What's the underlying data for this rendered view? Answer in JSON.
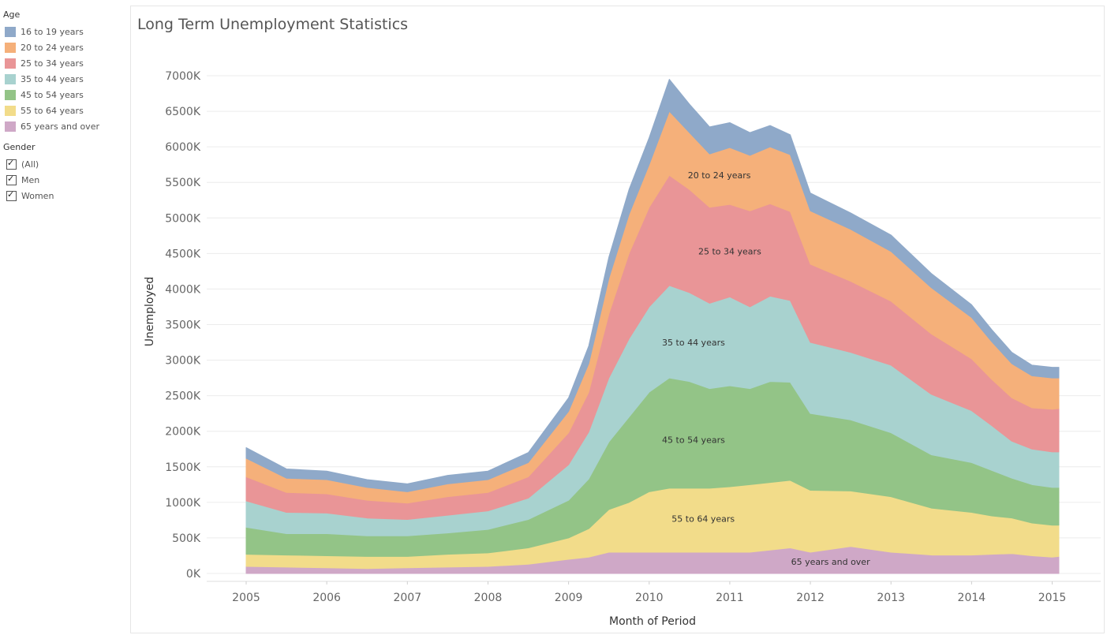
{
  "legend": {
    "age_title": "Age",
    "age_items": [
      {
        "label": "16 to 19 years",
        "color": "#8FA9C9"
      },
      {
        "label": "20 to 24 years",
        "color": "#F5B07A"
      },
      {
        "label": "25 to 34 years",
        "color": "#E99597"
      },
      {
        "label": "35 to 44 years",
        "color": "#A8D2CF"
      },
      {
        "label": "45 to 54 years",
        "color": "#93C487"
      },
      {
        "label": "55 to 64 years",
        "color": "#F2DC8A"
      },
      {
        "label": "65 years and over",
        "color": "#CFA8C7"
      }
    ],
    "gender_title": "Gender",
    "gender_items": [
      {
        "label": "(All)",
        "checked": true
      },
      {
        "label": "Men",
        "checked": true
      },
      {
        "label": "Women",
        "checked": true
      }
    ]
  },
  "chart_data": {
    "type": "area",
    "stacked": true,
    "title": "Long Term Unemployment Statistics",
    "xlabel": "Month of Period",
    "ylabel": "Unemployed",
    "x_ticks": [
      "2005",
      "2006",
      "2007",
      "2008",
      "2009",
      "2010",
      "2011",
      "2012",
      "2013",
      "2014",
      "2015"
    ],
    "y_ticks": [
      "0K",
      "500K",
      "1000K",
      "1500K",
      "2000K",
      "2500K",
      "3000K",
      "3500K",
      "4000K",
      "4500K",
      "5000K",
      "5500K",
      "6000K",
      "6500K",
      "7000K"
    ],
    "xlim": [
      2005.0,
      2015.083
    ],
    "ylim": [
      0,
      7000000
    ],
    "grid": true,
    "legend_placement": "left",
    "x": [
      2005.0,
      2005.5,
      2006.0,
      2006.5,
      2007.0,
      2007.5,
      2008.0,
      2008.5,
      2009.0,
      2009.25,
      2009.5,
      2009.75,
      2010.0,
      2010.25,
      2010.5,
      2010.75,
      2011.0,
      2011.25,
      2011.5,
      2011.75,
      2012.0,
      2012.5,
      2013.0,
      2013.5,
      2014.0,
      2014.25,
      2014.5,
      2014.75,
      2015.0,
      2015.083
    ],
    "series": [
      {
        "name": "65 years and over",
        "color": "#CFA8C7",
        "label_at": [
          2012.25,
          165000
        ],
        "values": [
          100000,
          90000,
          80000,
          70000,
          80000,
          90000,
          100000,
          130000,
          200000,
          230000,
          300000,
          300000,
          300000,
          300000,
          300000,
          300000,
          300000,
          300000,
          330000,
          360000,
          300000,
          380000,
          300000,
          260000,
          260000,
          270000,
          280000,
          250000,
          230000,
          240000
        ]
      },
      {
        "name": "55 to 64 years",
        "color": "#F2DC8A",
        "label_at": [
          2010.67,
          770000
        ],
        "values": [
          170000,
          170000,
          170000,
          170000,
          160000,
          180000,
          190000,
          230000,
          300000,
          400000,
          600000,
          700000,
          850000,
          900000,
          900000,
          900000,
          920000,
          950000,
          950000,
          950000,
          870000,
          780000,
          780000,
          660000,
          600000,
          540000,
          500000,
          460000,
          450000,
          440000
        ]
      },
      {
        "name": "45 to 54 years",
        "color": "#93C487",
        "label_at": [
          2010.55,
          1880000
        ],
        "values": [
          380000,
          300000,
          310000,
          290000,
          290000,
          300000,
          330000,
          400000,
          530000,
          700000,
          950000,
          1200000,
          1400000,
          1550000,
          1500000,
          1400000,
          1420000,
          1350000,
          1420000,
          1380000,
          1080000,
          1000000,
          900000,
          750000,
          700000,
          640000,
          560000,
          540000,
          530000,
          530000
        ]
      },
      {
        "name": "35 to 44 years",
        "color": "#A8D2CF",
        "label_at": [
          2010.55,
          3250000
        ],
        "values": [
          370000,
          300000,
          290000,
          250000,
          230000,
          250000,
          260000,
          300000,
          500000,
          660000,
          900000,
          1100000,
          1200000,
          1300000,
          1250000,
          1200000,
          1250000,
          1150000,
          1200000,
          1150000,
          1000000,
          950000,
          950000,
          850000,
          730000,
          630000,
          520000,
          500000,
          500000,
          500000
        ]
      },
      {
        "name": "25 to 34 years",
        "color": "#E99597",
        "label_at": [
          2011.0,
          4530000
        ],
        "values": [
          340000,
          280000,
          270000,
          250000,
          230000,
          260000,
          260000,
          300000,
          450000,
          560000,
          900000,
          1200000,
          1400000,
          1550000,
          1450000,
          1350000,
          1300000,
          1350000,
          1300000,
          1250000,
          1100000,
          1000000,
          900000,
          850000,
          730000,
          650000,
          610000,
          580000,
          600000,
          610000
        ]
      },
      {
        "name": "20 to 24 years",
        "color": "#F5B07A",
        "label_at": [
          2010.87,
          5600000
        ],
        "values": [
          260000,
          200000,
          200000,
          180000,
          160000,
          180000,
          180000,
          200000,
          300000,
          400000,
          500000,
          550000,
          600000,
          900000,
          800000,
          750000,
          800000,
          780000,
          800000,
          800000,
          750000,
          730000,
          700000,
          650000,
          580000,
          530000,
          480000,
          450000,
          440000,
          430000
        ]
      },
      {
        "name": "16 to 19 years",
        "color": "#8FA9C9",
        "label_at": null,
        "values": [
          150000,
          130000,
          120000,
          110000,
          110000,
          120000,
          120000,
          140000,
          190000,
          250000,
          300000,
          350000,
          380000,
          450000,
          400000,
          380000,
          350000,
          320000,
          300000,
          280000,
          250000,
          230000,
          230000,
          200000,
          180000,
          170000,
          160000,
          150000,
          150000,
          150000
        ]
      }
    ]
  }
}
